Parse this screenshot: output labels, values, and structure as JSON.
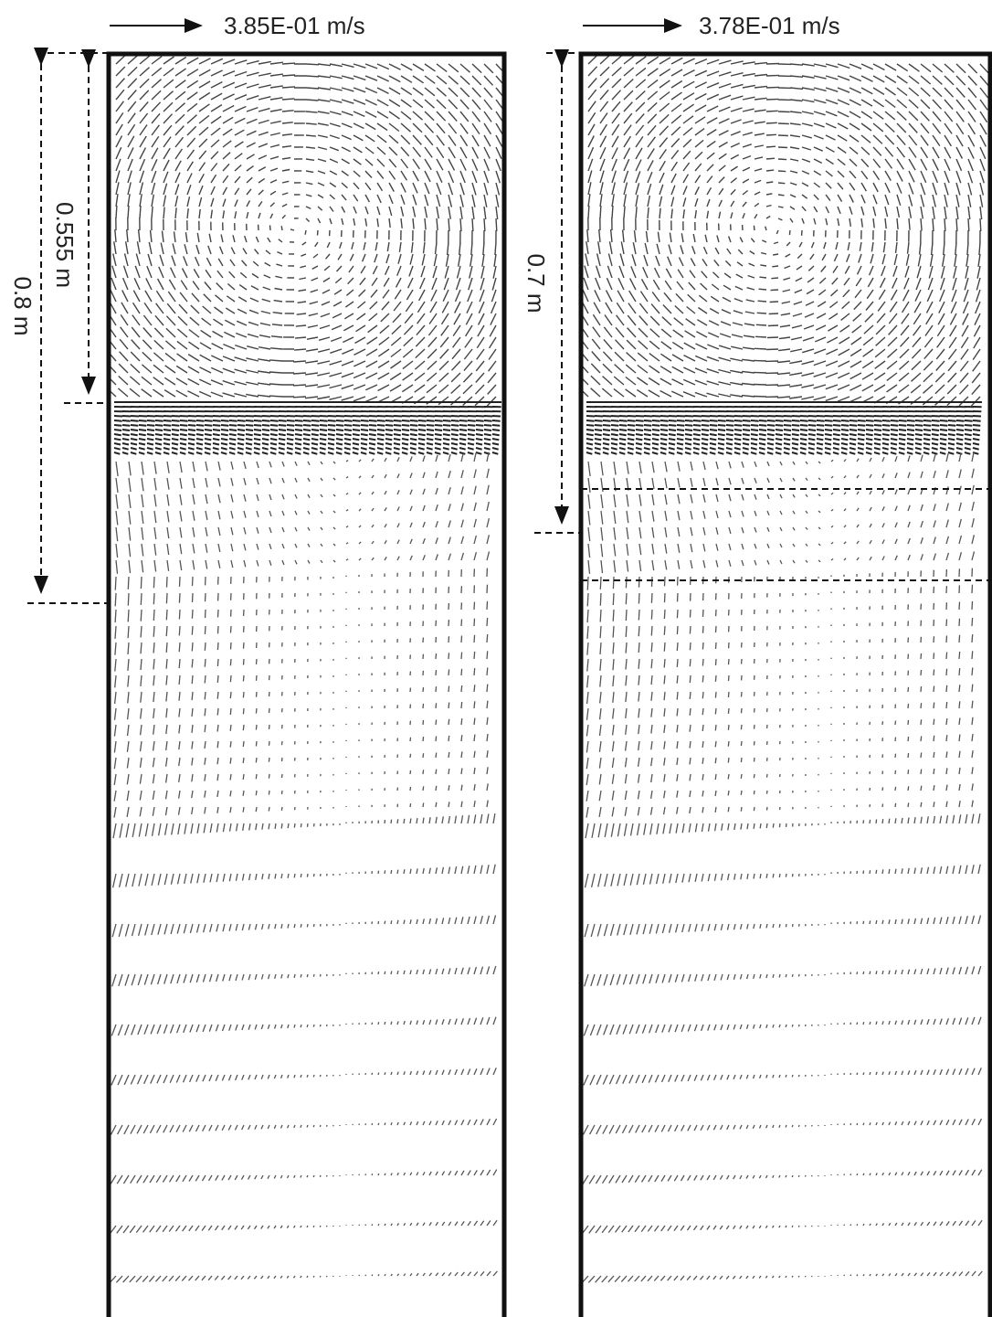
{
  "figure": {
    "panels": [
      {
        "scale_label": "3.85E-01 m/s"
      },
      {
        "scale_label": "3.78E-01 m/s"
      }
    ],
    "dimensions": {
      "left_outer": "0.8 m",
      "left_inner": "0.555 m",
      "right": "0.7 m"
    }
  }
}
